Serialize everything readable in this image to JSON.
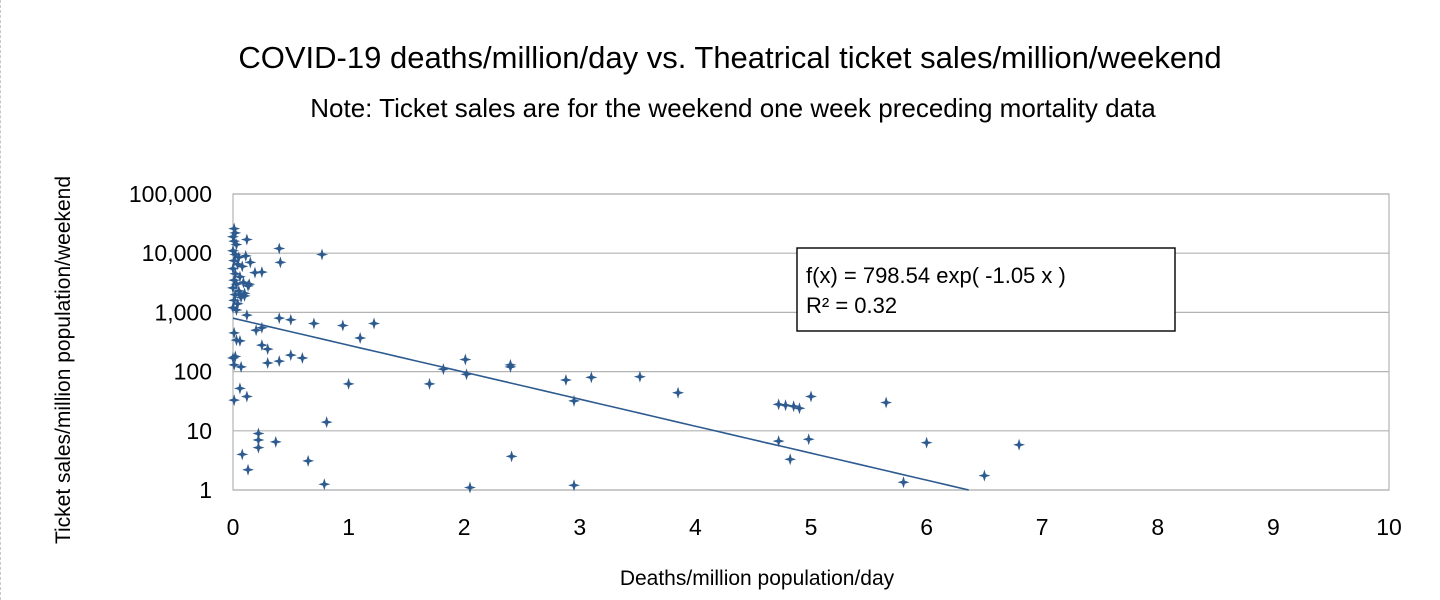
{
  "chart_data": {
    "type": "scatter",
    "title": "COVID-19  deaths/million/day  vs.  Theatrical  ticket  sales/million/weekend",
    "subtitle": "Note: Ticket sales are for the weekend one week preceding mortality data",
    "xlabel": "Deaths/million population/day",
    "ylabel": "Ticket sales/million population/weekend",
    "xlim": [
      0,
      10
    ],
    "ylim": [
      1,
      100000
    ],
    "y_scale": "log",
    "x_ticks": [
      "0",
      "1",
      "2",
      "3",
      "4",
      "5",
      "6",
      "7",
      "8",
      "9",
      "10"
    ],
    "y_ticks": [
      {
        "value": 1,
        "label": "1"
      },
      {
        "value": 10,
        "label": "10"
      },
      {
        "value": 100,
        "label": "100"
      },
      {
        "value": 1000,
        "label": "1,000"
      },
      {
        "value": 10000,
        "label": "10,000"
      },
      {
        "value": 100000,
        "label": "100,000"
      }
    ],
    "grid": "horizontal",
    "marker_color": "#2e5b8f",
    "trendline_color": "#2e5b8f",
    "trendline": {
      "type": "exponential",
      "a": 798.54,
      "b": -1.05
    },
    "annotation": {
      "line1": "f(x) = 798.54 exp( -1.05 x )",
      "line2": "R² = 0.32"
    },
    "points": [
      [
        0.01,
        26000
      ],
      [
        0.02,
        22000
      ],
      [
        0.0,
        19000
      ],
      [
        0.01,
        16000
      ],
      [
        0.03,
        14000
      ],
      [
        0.0,
        11000
      ],
      [
        0.02,
        9500
      ],
      [
        0.05,
        8500
      ],
      [
        0.01,
        7500
      ],
      [
        0.04,
        6500
      ],
      [
        0.0,
        5500
      ],
      [
        0.02,
        4500
      ],
      [
        0.06,
        4000
      ],
      [
        0.01,
        3500
      ],
      [
        0.03,
        3000
      ],
      [
        0.0,
        2600
      ],
      [
        0.05,
        2300
      ],
      [
        0.02,
        2000
      ],
      [
        0.07,
        1800
      ],
      [
        0.01,
        1600
      ],
      [
        0.04,
        1400
      ],
      [
        0.0,
        1200
      ],
      [
        0.03,
        1100
      ],
      [
        0.1,
        1900
      ],
      [
        0.12,
        17000
      ],
      [
        0.11,
        9000
      ],
      [
        0.08,
        6000
      ],
      [
        0.09,
        3200
      ],
      [
        0.13,
        2800
      ],
      [
        0.1,
        2100
      ],
      [
        0.15,
        7000
      ],
      [
        0.19,
        4700
      ],
      [
        0.25,
        4800
      ],
      [
        0.14,
        3000
      ],
      [
        0.06,
        2000
      ],
      [
        0.4,
        12000
      ],
      [
        0.41,
        7000
      ],
      [
        0.77,
        9500
      ],
      [
        0.12,
        900
      ],
      [
        0.4,
        800
      ],
      [
        0.5,
        750
      ],
      [
        0.7,
        650
      ],
      [
        0.95,
        600
      ],
      [
        1.22,
        650
      ],
      [
        0.25,
        550
      ],
      [
        0.2,
        500
      ],
      [
        0.01,
        450
      ],
      [
        0.03,
        340
      ],
      [
        0.06,
        330
      ],
      [
        0.25,
        280
      ],
      [
        0.3,
        240
      ],
      [
        1.1,
        370
      ],
      [
        0.02,
        180
      ],
      [
        0.0,
        170
      ],
      [
        0.5,
        190
      ],
      [
        0.6,
        170
      ],
      [
        0.4,
        150
      ],
      [
        0.3,
        140
      ],
      [
        0.01,
        130
      ],
      [
        0.07,
        120
      ],
      [
        1.0,
        62
      ],
      [
        1.82,
        110
      ],
      [
        2.01,
        160
      ],
      [
        2.02,
        90
      ],
      [
        2.4,
        130
      ],
      [
        2.4,
        120
      ],
      [
        2.88,
        72
      ],
      [
        3.1,
        80
      ],
      [
        3.52,
        82
      ],
      [
        3.85,
        44
      ],
      [
        1.7,
        62
      ],
      [
        0.06,
        52
      ],
      [
        0.12,
        38
      ],
      [
        0.01,
        33
      ],
      [
        2.95,
        32
      ],
      [
        4.72,
        28
      ],
      [
        4.78,
        27
      ],
      [
        4.85,
        26
      ],
      [
        4.9,
        24
      ],
      [
        5.0,
        38
      ],
      [
        5.65,
        30
      ],
      [
        0.81,
        14
      ],
      [
        0.22,
        9
      ],
      [
        0.22,
        7
      ],
      [
        0.37,
        6.5
      ],
      [
        0.22,
        5.2
      ],
      [
        0.08,
        4
      ],
      [
        0.13,
        2.2
      ],
      [
        0.65,
        3.1
      ],
      [
        2.41,
        3.7
      ],
      [
        4.72,
        6.7
      ],
      [
        4.98,
        7.2
      ],
      [
        4.82,
        3.3
      ],
      [
        6.0,
        6.3
      ],
      [
        6.8,
        5.8
      ],
      [
        0.79,
        1.25
      ],
      [
        2.05,
        1.1
      ],
      [
        2.95,
        1.2
      ],
      [
        5.8,
        1.35
      ],
      [
        6.5,
        1.75
      ]
    ]
  }
}
